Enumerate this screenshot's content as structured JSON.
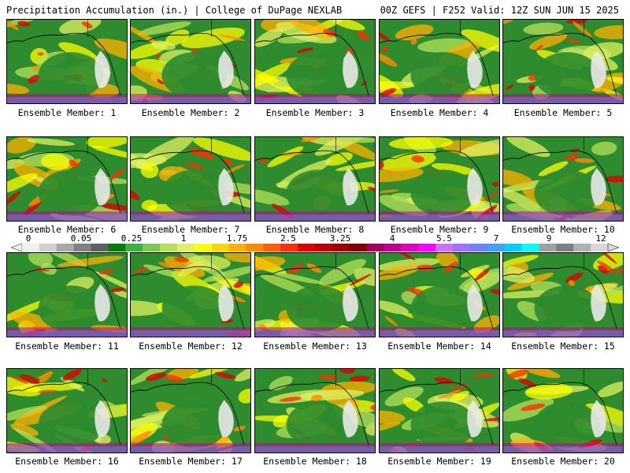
{
  "header": {
    "title_left": "Precipitation Accumulation (in.) | College of DuPage NEXLAB",
    "title_right": "00Z GEFS | F252 Valid: 12Z SUN JUN 15 2025"
  },
  "panel_label_prefix": "Ensemble Member: ",
  "members": [
    "1",
    "2",
    "3",
    "4",
    "5",
    "6",
    "7",
    "8",
    "9",
    "10",
    "11",
    "12",
    "13",
    "14",
    "15",
    "16",
    "17",
    "18",
    "19",
    "20"
  ],
  "colorbar": {
    "tick_labels": [
      "0",
      "0.05",
      "0.25",
      "1",
      "1.75",
      "2.5",
      "3.25",
      "4",
      "5.5",
      "7",
      "9",
      "12"
    ],
    "colors": [
      "#f0f0f0",
      "#d0d0d0",
      "#a8a8a8",
      "#808080",
      "#606060",
      "#008000",
      "#3cb043",
      "#7cc850",
      "#b4e05a",
      "#e0f060",
      "#ffff00",
      "#ffd700",
      "#ffb000",
      "#ff8c00",
      "#ff6000",
      "#ff3000",
      "#e00000",
      "#c00000",
      "#a00000",
      "#800000",
      "#a00060",
      "#c00090",
      "#e000c0",
      "#ff00ff",
      "#d070ff",
      "#a070ff",
      "#7080ff",
      "#40a0ff",
      "#00d0ff",
      "#00ffff",
      "#a0a0a0",
      "#808080",
      "#b0b0b0",
      "#d8d8d8"
    ]
  }
}
